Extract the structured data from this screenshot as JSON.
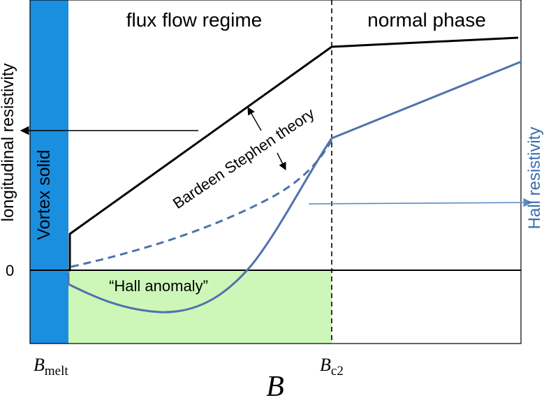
{
  "labels": {
    "flux_flow": "flux flow regime",
    "normal_phase": "normal phase",
    "vortex_solid": "Vortex solid",
    "longitudinal_resistivity": "longitudinal resistivity",
    "hall_resistivity": "Hall resistivity",
    "bardeen_stephen": "Bardeen Stephen theory",
    "hall_anomaly": "“Hall anomaly”",
    "zero": "0",
    "b_melt_main": "B",
    "b_melt_sub": "melt",
    "b_c2_main": "B",
    "b_c2_sub": "c2",
    "b_axis": "B"
  },
  "colors": {
    "vortex_band": "#1a8fe0",
    "hall_anomaly_region": "#ccf7b8",
    "longitudinal_curve": "#000000",
    "hall_curve": "#4f72ad",
    "hall_arrow": "#5a8ac8",
    "hall_label": "#3a6db0"
  },
  "icons": {
    "longitudinal_axis_arrow": "left-arrow",
    "hall_axis_arrow": "right-arrow"
  }
}
